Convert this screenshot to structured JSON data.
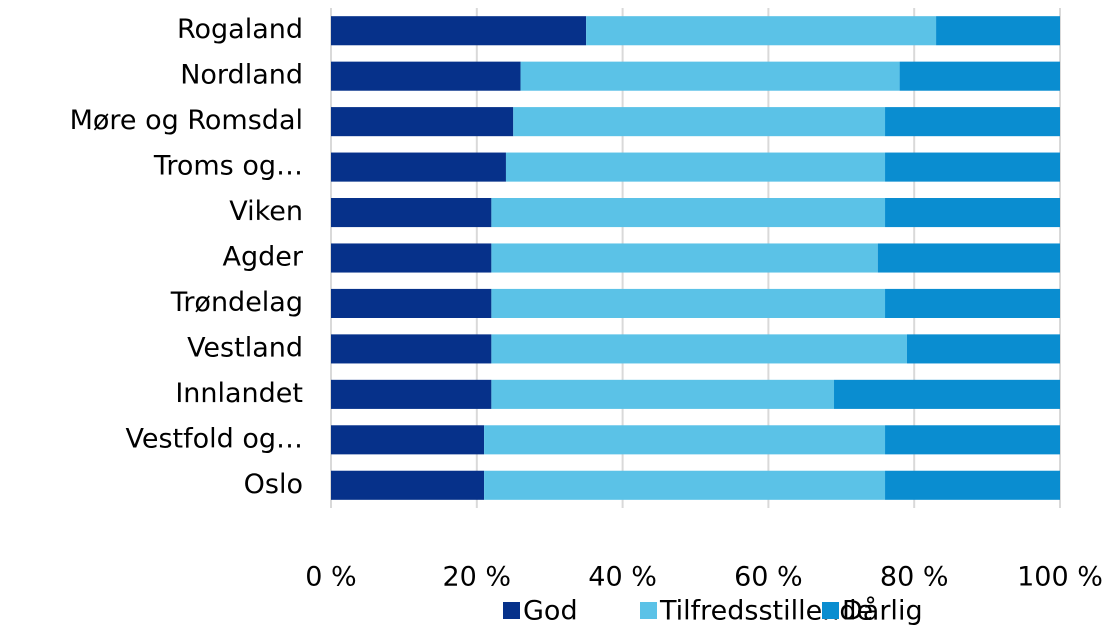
{
  "chart_data": {
    "type": "stacked_barh",
    "categories": [
      "Rogaland",
      "Nordland",
      "Møre og Romsdal",
      "Troms og…",
      "Viken",
      "Agder",
      "Trøndelag",
      "Vestland",
      "Innlandet",
      "Vestfold og…",
      "Oslo"
    ],
    "series": [
      {
        "name": "God",
        "color": "#06318a",
        "values": [
          35,
          26,
          25,
          24,
          22,
          22,
          22,
          22,
          22,
          21,
          21
        ]
      },
      {
        "name": "Tilfredsstillende",
        "color": "#5bc2e7",
        "values": [
          48,
          52,
          51,
          52,
          54,
          53,
          54,
          57,
          47,
          55,
          55
        ]
      },
      {
        "name": "Dårlig",
        "color": "#0a8dd0",
        "values": [
          17,
          22,
          24,
          24,
          24,
          25,
          24,
          21,
          31,
          24,
          24
        ]
      }
    ],
    "xlim": [
      0,
      100
    ],
    "xticks": [
      {
        "value": 0,
        "label": "0 %"
      },
      {
        "value": 20,
        "label": "20 %"
      },
      {
        "value": 40,
        "label": "40 %"
      },
      {
        "value": 60,
        "label": "60 %"
      },
      {
        "value": 80,
        "label": "80 %"
      },
      {
        "value": 100,
        "label": "100 %"
      }
    ],
    "grid": true,
    "legend": "bottom"
  }
}
